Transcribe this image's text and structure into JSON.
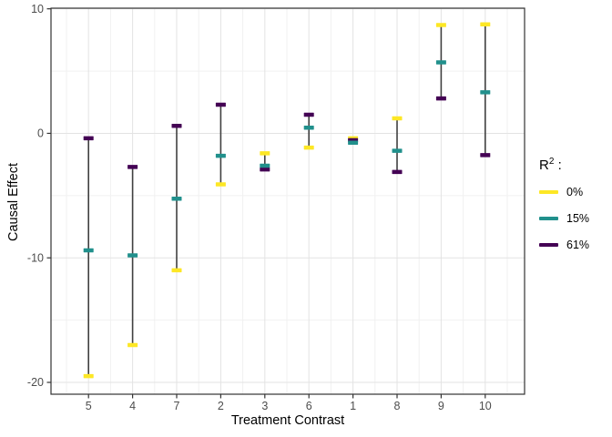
{
  "figure": {
    "background": "#ffffff"
  },
  "axes": {
    "x_title": "Treatment Contrast",
    "y_title": "Causal Effect"
  },
  "legend": {
    "title_base": "R",
    "title_sup": "2",
    "title_suffix": " :",
    "items": [
      {
        "label": "0%",
        "color": "#FDE725"
      },
      {
        "label": "15%",
        "color": "#21908C"
      },
      {
        "label": "61%",
        "color": "#440154"
      }
    ]
  },
  "colors": {
    "panel_border": "#333333",
    "grid_major": "#e3e3e3",
    "grid_minor": "#f1f1f1",
    "range_line": "#404040",
    "tick_mark": "#333333",
    "tick_text": "#4d4d4d"
  },
  "chart_data": {
    "type": "pointrange",
    "title": "",
    "xlabel": "Treatment Contrast",
    "ylabel": "Causal Effect",
    "categories": [
      "5",
      "4",
      "7",
      "2",
      "3",
      "6",
      "1",
      "8",
      "9",
      "10"
    ],
    "series": [
      {
        "name": "0%",
        "color": "#FDE725",
        "values": [
          -19.5,
          -17.0,
          -11.0,
          -4.1,
          -1.6,
          -1.15,
          -0.4,
          1.2,
          8.7,
          8.75
        ]
      },
      {
        "name": "15%",
        "color": "#21908C",
        "values": [
          -9.4,
          -9.8,
          -5.25,
          -1.8,
          -2.6,
          0.45,
          -0.75,
          -1.4,
          5.7,
          3.3
        ]
      },
      {
        "name": "61%",
        "color": "#440154",
        "values": [
          -0.4,
          -2.7,
          0.6,
          2.3,
          -2.9,
          1.5,
          -0.55,
          -3.1,
          2.8,
          -1.75
        ]
      }
    ],
    "ylim": [
      -21,
      10
    ],
    "yticks": [
      10,
      0,
      -10,
      -20
    ],
    "yticks_minor": [
      5,
      -5,
      -15
    ],
    "grid": true,
    "legend_position": "right",
    "legend_title": "R2 :"
  }
}
